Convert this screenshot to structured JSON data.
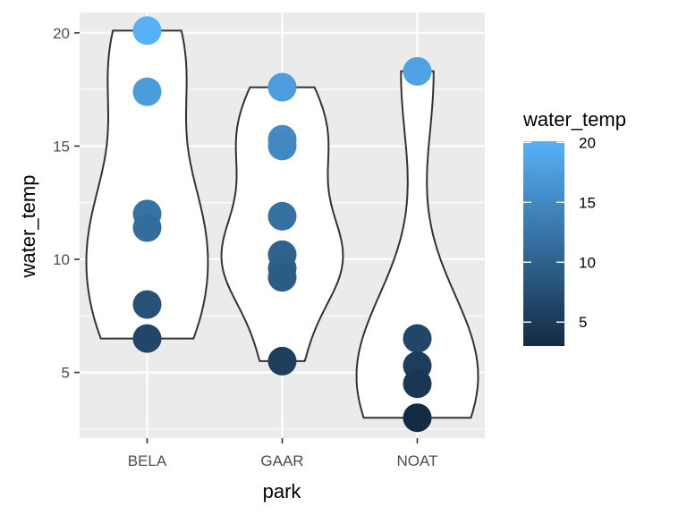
{
  "chart_data": {
    "type": "violin",
    "xlabel": "park",
    "ylabel": "water_temp",
    "categories": [
      "BELA",
      "GAAR",
      "NOAT"
    ],
    "ylim": [
      2.1,
      20.9
    ],
    "yticks": [
      5,
      10,
      15,
      20
    ],
    "grid": true,
    "series": [
      {
        "category": "BELA",
        "values": [
          20.1,
          17.4,
          12.0,
          11.4,
          8.0,
          6.5
        ]
      },
      {
        "category": "GAAR",
        "values": [
          17.6,
          15.3,
          15.0,
          11.9,
          10.2,
          9.6,
          9.2,
          5.5
        ]
      },
      {
        "category": "NOAT",
        "values": [
          18.3,
          6.5,
          5.3,
          4.5,
          3.0
        ]
      }
    ],
    "color_scale": {
      "variable": "water_temp",
      "low_color": "#132B43",
      "high_color": "#56B1F7",
      "range": [
        3.0,
        20.1
      ],
      "breaks": [
        5,
        10,
        15,
        20
      ]
    },
    "legend": {
      "title": "water_temp",
      "position": "right"
    }
  }
}
